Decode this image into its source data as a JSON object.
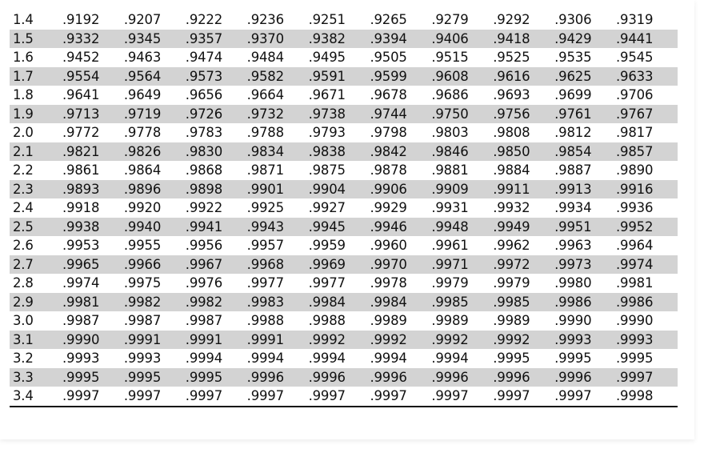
{
  "table": {
    "rows": [
      {
        "z": "1.4",
        "values": [
          ".9192",
          ".9207",
          ".9222",
          ".9236",
          ".9251",
          ".9265",
          ".9279",
          ".9292",
          ".9306",
          ".9319"
        ],
        "shaded": false
      },
      {
        "z": "1.5",
        "values": [
          ".9332",
          ".9345",
          ".9357",
          ".9370",
          ".9382",
          ".9394",
          ".9406",
          ".9418",
          ".9429",
          ".9441"
        ],
        "shaded": true
      },
      {
        "z": "1.6",
        "values": [
          ".9452",
          ".9463",
          ".9474",
          ".9484",
          ".9495",
          ".9505",
          ".9515",
          ".9525",
          ".9535",
          ".9545"
        ],
        "shaded": false
      },
      {
        "z": "1.7",
        "values": [
          ".9554",
          ".9564",
          ".9573",
          ".9582",
          ".9591",
          ".9599",
          ".9608",
          ".9616",
          ".9625",
          ".9633"
        ],
        "shaded": true
      },
      {
        "z": "1.8",
        "values": [
          ".9641",
          ".9649",
          ".9656",
          ".9664",
          ".9671",
          ".9678",
          ".9686",
          ".9693",
          ".9699",
          ".9706"
        ],
        "shaded": false
      },
      {
        "z": "1.9",
        "values": [
          ".9713",
          ".9719",
          ".9726",
          ".9732",
          ".9738",
          ".9744",
          ".9750",
          ".9756",
          ".9761",
          ".9767"
        ],
        "shaded": true
      },
      {
        "z": "2.0",
        "values": [
          ".9772",
          ".9778",
          ".9783",
          ".9788",
          ".9793",
          ".9798",
          ".9803",
          ".9808",
          ".9812",
          ".9817"
        ],
        "shaded": false
      },
      {
        "z": "2.1",
        "values": [
          ".9821",
          ".9826",
          ".9830",
          ".9834",
          ".9838",
          ".9842",
          ".9846",
          ".9850",
          ".9854",
          ".9857"
        ],
        "shaded": true
      },
      {
        "z": "2.2",
        "values": [
          ".9861",
          ".9864",
          ".9868",
          ".9871",
          ".9875",
          ".9878",
          ".9881",
          ".9884",
          ".9887",
          ".9890"
        ],
        "shaded": false
      },
      {
        "z": "2.3",
        "values": [
          ".9893",
          ".9896",
          ".9898",
          ".9901",
          ".9904",
          ".9906",
          ".9909",
          ".9911",
          ".9913",
          ".9916"
        ],
        "shaded": true
      },
      {
        "z": "2.4",
        "values": [
          ".9918",
          ".9920",
          ".9922",
          ".9925",
          ".9927",
          ".9929",
          ".9931",
          ".9932",
          ".9934",
          ".9936"
        ],
        "shaded": false
      },
      {
        "z": "2.5",
        "values": [
          ".9938",
          ".9940",
          ".9941",
          ".9943",
          ".9945",
          ".9946",
          ".9948",
          ".9949",
          ".9951",
          ".9952"
        ],
        "shaded": true
      },
      {
        "z": "2.6",
        "values": [
          ".9953",
          ".9955",
          ".9956",
          ".9957",
          ".9959",
          ".9960",
          ".9961",
          ".9962",
          ".9963",
          ".9964"
        ],
        "shaded": false
      },
      {
        "z": "2.7",
        "values": [
          ".9965",
          ".9966",
          ".9967",
          ".9968",
          ".9969",
          ".9970",
          ".9971",
          ".9972",
          ".9973",
          ".9974"
        ],
        "shaded": true
      },
      {
        "z": "2.8",
        "values": [
          ".9974",
          ".9975",
          ".9976",
          ".9977",
          ".9977",
          ".9978",
          ".9979",
          ".9979",
          ".9980",
          ".9981"
        ],
        "shaded": false
      },
      {
        "z": "2.9",
        "values": [
          ".9981",
          ".9982",
          ".9982",
          ".9983",
          ".9984",
          ".9984",
          ".9985",
          ".9985",
          ".9986",
          ".9986"
        ],
        "shaded": true
      },
      {
        "z": "3.0",
        "values": [
          ".9987",
          ".9987",
          ".9987",
          ".9988",
          ".9988",
          ".9989",
          ".9989",
          ".9989",
          ".9990",
          ".9990"
        ],
        "shaded": false
      },
      {
        "z": "3.1",
        "values": [
          ".9990",
          ".9991",
          ".9991",
          ".9991",
          ".9992",
          ".9992",
          ".9992",
          ".9992",
          ".9993",
          ".9993"
        ],
        "shaded": true
      },
      {
        "z": "3.2",
        "values": [
          ".9993",
          ".9993",
          ".9994",
          ".9994",
          ".9994",
          ".9994",
          ".9994",
          ".9995",
          ".9995",
          ".9995"
        ],
        "shaded": false
      },
      {
        "z": "3.3",
        "values": [
          ".9995",
          ".9995",
          ".9995",
          ".9996",
          ".9996",
          ".9996",
          ".9996",
          ".9996",
          ".9996",
          ".9997"
        ],
        "shaded": true
      },
      {
        "z": "3.4",
        "values": [
          ".9997",
          ".9997",
          ".9997",
          ".9997",
          ".9997",
          ".9997",
          ".9997",
          ".9997",
          ".9997",
          ".9998"
        ],
        "shaded": false
      }
    ],
    "colors": {
      "shade": "#d3d3d3",
      "text": "#111111",
      "rule": "#111111",
      "background": "#ffffff"
    }
  }
}
